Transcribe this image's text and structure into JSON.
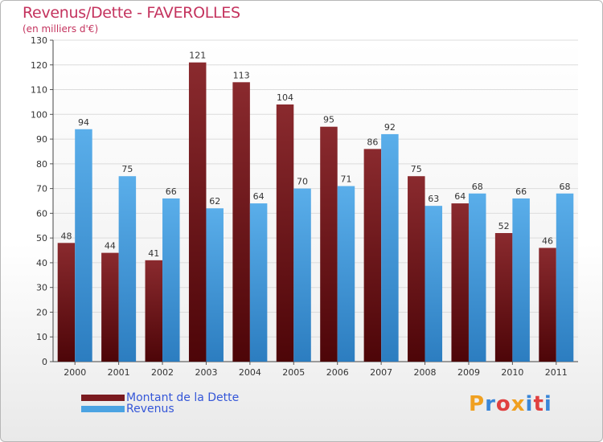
{
  "header": {
    "title": "Revenus/Dette - FAVEROLLES",
    "subtitle": "(en milliers d'€)"
  },
  "legend": {
    "items": [
      {
        "label": "Montant de la Dette",
        "color": "#7a1a1f"
      },
      {
        "label": "Revenus",
        "color": "#4ba3e2"
      }
    ]
  },
  "logo": {
    "text": "Proxiti",
    "letter_colors": [
      "#f0a020",
      "#3a86d8",
      "#e04040",
      "#f0a020",
      "#3a86d8",
      "#e04040",
      "#3a86d8"
    ]
  },
  "colors": {
    "dette_top": "#8a2a2e",
    "dette_bottom": "#4d0508",
    "revenus_top": "#5aaeea",
    "revenus_bottom": "#2c7dc0",
    "title": "#c4335e",
    "legend_text": "#3456d8"
  },
  "chart_data": {
    "type": "bar",
    "title": "Revenus/Dette - FAVEROLLES",
    "subtitle": "(en milliers d'€)",
    "categories": [
      "2000",
      "2001",
      "2002",
      "2003",
      "2004",
      "2005",
      "2006",
      "2007",
      "2008",
      "2009",
      "2010",
      "2011"
    ],
    "series": [
      {
        "name": "Montant de la Dette",
        "values": [
          48,
          44,
          41,
          121,
          113,
          104,
          95,
          86,
          75,
          64,
          52,
          46
        ]
      },
      {
        "name": "Revenus",
        "values": [
          94,
          75,
          66,
          62,
          64,
          70,
          71,
          92,
          63,
          68,
          66,
          68
        ]
      }
    ],
    "ylim": [
      0,
      130
    ],
    "yticks": [
      0,
      10,
      20,
      30,
      40,
      50,
      60,
      70,
      80,
      90,
      100,
      110,
      120,
      130
    ],
    "grid": true,
    "legend_position": "bottom-left",
    "xlabel": "",
    "ylabel": ""
  }
}
